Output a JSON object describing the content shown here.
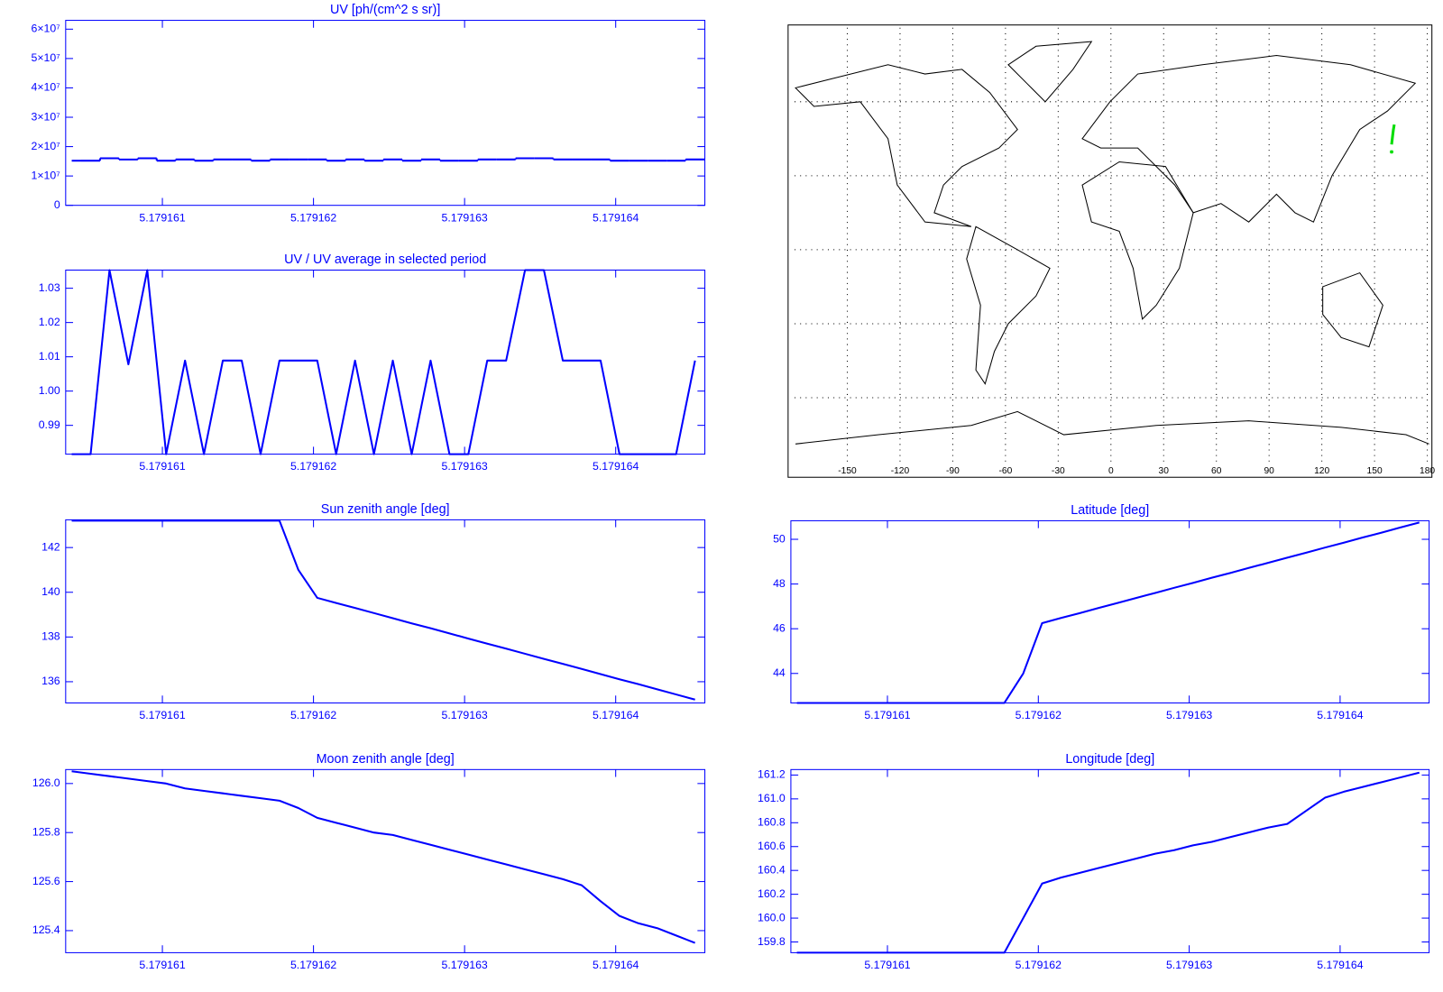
{
  "chart_data": [
    {
      "type": "line",
      "title": "UV [ph/(cm^2 s sr)]",
      "color": "#0000ff",
      "step": true,
      "x": [
        5.1791604,
        5.179160525,
        5.17916065,
        5.179160775,
        5.1791609,
        5.179161025,
        5.17916115,
        5.179161275,
        5.1791614,
        5.179161525,
        5.17916165,
        5.179161775,
        5.1791619,
        5.179162025,
        5.17916215,
        5.179162275,
        5.1791624,
        5.179162525,
        5.17916265,
        5.179162775,
        5.1791629,
        5.179163025,
        5.17916315,
        5.179163275,
        5.1791634,
        5.179163525,
        5.17916365,
        5.179163775,
        5.1791639,
        5.179164025,
        5.17916415,
        5.179164275,
        5.1791644,
        5.179164525
      ],
      "values": [
        15200000,
        15200000,
        16030000,
        15600000,
        16030000,
        15200000,
        15620000,
        15200000,
        15620000,
        15620000,
        15200000,
        15620000,
        15620000,
        15620000,
        15200000,
        15620000,
        15200000,
        15620000,
        15200000,
        15620000,
        15200000,
        15200000,
        15620000,
        15620000,
        16030000,
        16030000,
        15620000,
        15620000,
        15620000,
        15200000,
        15200000,
        15200000,
        15200000,
        15620000
      ],
      "xlim": [
        5.17916036,
        5.17916459
      ],
      "xticks": [
        5.179161,
        5.179162,
        5.179163,
        5.179164
      ],
      "ylim": [
        0,
        63000000
      ],
      "yticks": [
        0,
        {
          "value": 10000000,
          "label": "1×10⁷"
        },
        {
          "value": 20000000,
          "label": "2×10⁷"
        },
        {
          "value": 30000000,
          "label": "3×10⁷"
        },
        {
          "value": 40000000,
          "label": "4×10⁷"
        },
        {
          "value": 50000000,
          "label": "5×10⁷"
        },
        {
          "value": 60000000,
          "label": "6×10⁷"
        }
      ]
    },
    {
      "type": "line",
      "title": "UV / UV average in selected period",
      "color": "#0000ff",
      "x": [
        5.1791604,
        5.179160525,
        5.17916065,
        5.179160775,
        5.1791609,
        5.179161025,
        5.17916115,
        5.179161275,
        5.1791614,
        5.179161525,
        5.17916165,
        5.179161775,
        5.1791619,
        5.179162025,
        5.17916215,
        5.179162275,
        5.1791624,
        5.179162525,
        5.17916265,
        5.179162775,
        5.1791629,
        5.179163025,
        5.17916315,
        5.179163275,
        5.1791634,
        5.179163525,
        5.17916365,
        5.179163775,
        5.1791639,
        5.179164025,
        5.17916415,
        5.179164275,
        5.1791644,
        5.179164525
      ],
      "values": [
        0.9816,
        0.9816,
        1.0353,
        1.0078,
        1.0353,
        0.9816,
        1.0089,
        0.9816,
        1.0089,
        1.0089,
        0.9816,
        1.0089,
        1.0089,
        1.0089,
        0.9816,
        1.0089,
        0.9816,
        1.0089,
        0.9816,
        1.0089,
        0.9816,
        0.9816,
        1.0089,
        1.0089,
        1.0353,
        1.0353,
        1.0089,
        1.0089,
        1.0089,
        0.9816,
        0.9816,
        0.9816,
        0.9816,
        1.0089
      ],
      "xlim": [
        5.17916036,
        5.17916459
      ],
      "xticks": [
        5.179161,
        5.179162,
        5.179163,
        5.179164
      ],
      "ylim": [
        0.9816,
        1.0353
      ],
      "yticks": [
        0.99,
        {
          "value": 1,
          "label": "1.00"
        },
        1.01,
        1.02,
        1.03
      ]
    },
    {
      "type": "line",
      "title": "Sun zenith angle [deg]",
      "color": "#0000ff",
      "x": [
        5.1791604,
        5.179160525,
        5.17916065,
        5.179160775,
        5.1791609,
        5.179161025,
        5.17916115,
        5.179161275,
        5.1791614,
        5.179161525,
        5.17916165,
        5.179161775,
        5.1791619,
        5.179162025,
        5.17916215,
        5.179162275,
        5.1791624,
        5.179162525,
        5.17916265,
        5.179162775,
        5.1791629,
        5.179163025,
        5.17916315,
        5.179163275,
        5.1791634,
        5.179163525,
        5.17916365,
        5.179163775,
        5.1791639,
        5.179164025,
        5.17916415,
        5.179164275,
        5.1791644,
        5.179164525
      ],
      "values": [
        143.2,
        143.2,
        143.2,
        143.2,
        143.2,
        143.2,
        143.2,
        143.2,
        143.2,
        143.2,
        143.2,
        143.2,
        141.0,
        139.75,
        139.52,
        139.3,
        139.07,
        138.84,
        138.61,
        138.39,
        138.16,
        137.93,
        137.7,
        137.48,
        137.25,
        137.02,
        136.8,
        136.57,
        136.34,
        136.11,
        135.89,
        135.66,
        135.43,
        135.2
      ],
      "xlim": [
        5.17916036,
        5.17916459
      ],
      "xticks": [
        5.179161,
        5.179162,
        5.179163,
        5.179164
      ],
      "ylim": [
        135.05,
        143.24
      ],
      "yticks": [
        136,
        138,
        140,
        142
      ]
    },
    {
      "type": "line",
      "title": "Moon zenith angle [deg]",
      "color": "#0000ff",
      "x": [
        5.1791604,
        5.179160525,
        5.17916065,
        5.179160775,
        5.1791609,
        5.179161025,
        5.17916115,
        5.179161275,
        5.1791614,
        5.179161525,
        5.17916165,
        5.179161775,
        5.1791619,
        5.179162025,
        5.17916215,
        5.179162275,
        5.1791624,
        5.179162525,
        5.17916265,
        5.179162775,
        5.1791629,
        5.179163025,
        5.17916315,
        5.179163275,
        5.1791634,
        5.179163525,
        5.17916365,
        5.179163775,
        5.1791639,
        5.179164025,
        5.17916415,
        5.179164275,
        5.1791644,
        5.179164525
      ],
      "values": [
        126.05,
        126.04,
        126.03,
        126.02,
        126.01,
        126.0,
        125.98,
        125.97,
        125.96,
        125.95,
        125.94,
        125.93,
        125.9,
        125.86,
        125.84,
        125.82,
        125.8,
        125.79,
        125.77,
        125.75,
        125.73,
        125.71,
        125.69,
        125.67,
        125.65,
        125.63,
        125.61,
        125.585,
        125.52,
        125.46,
        125.43,
        125.41,
        125.38,
        125.35
      ],
      "xlim": [
        5.17916036,
        5.17916459
      ],
      "xticks": [
        5.179161,
        5.179162,
        5.179163,
        5.179164
      ],
      "ylim": [
        125.31,
        126.057
      ],
      "yticks": [
        125.4,
        125.6,
        125.8,
        {
          "value": 126,
          "label": "126.0"
        }
      ]
    },
    {
      "type": "map",
      "color": "#00dd00",
      "grid": true,
      "x": [
        159.71,
        160.29,
        160.68,
        161.22
      ],
      "values": [
        42.68,
        46.25,
        48.5,
        50.75
      ],
      "xlim": [
        -180,
        180
      ],
      "xticks": [
        -150,
        -120,
        -90,
        -60,
        -30,
        0,
        30,
        60,
        90,
        120,
        150,
        180
      ],
      "ylim": [
        -90,
        90
      ],
      "yticks": [
        -60,
        -30,
        0,
        30,
        60
      ]
    },
    {
      "type": "line",
      "title": "Latitude [deg]",
      "color": "#0000ff",
      "x": [
        5.1791604,
        5.179160525,
        5.17916065,
        5.179160775,
        5.1791609,
        5.179161025,
        5.17916115,
        5.179161275,
        5.1791614,
        5.179161525,
        5.17916165,
        5.179161775,
        5.1791619,
        5.179162025,
        5.17916215,
        5.179162275,
        5.1791624,
        5.179162525,
        5.17916265,
        5.179162775,
        5.1791629,
        5.179163025,
        5.17916315,
        5.179163275,
        5.1791634,
        5.179163525,
        5.17916365,
        5.179163775,
        5.1791639,
        5.179164025,
        5.17916415,
        5.179164275,
        5.1791644,
        5.179164525
      ],
      "values": [
        42.68,
        42.68,
        42.68,
        42.68,
        42.68,
        42.68,
        42.68,
        42.68,
        42.68,
        42.68,
        42.68,
        42.68,
        44.0,
        46.25,
        46.48,
        46.7,
        46.93,
        47.15,
        47.38,
        47.6,
        47.83,
        48.05,
        48.28,
        48.5,
        48.73,
        48.95,
        49.18,
        49.4,
        49.63,
        49.85,
        50.08,
        50.3,
        50.53,
        50.75
      ],
      "xlim": [
        5.17916036,
        5.17916459
      ],
      "xticks": [
        5.179161,
        5.179162,
        5.179163,
        5.179164
      ],
      "ylim": [
        42.68,
        50.83
      ],
      "yticks": [
        44,
        46,
        48,
        50
      ]
    },
    {
      "type": "line",
      "title": "Longitude [deg]",
      "color": "#0000ff",
      "x": [
        5.1791604,
        5.179160525,
        5.17916065,
        5.179160775,
        5.1791609,
        5.179161025,
        5.17916115,
        5.179161275,
        5.1791614,
        5.179161525,
        5.17916165,
        5.179161775,
        5.1791619,
        5.179162025,
        5.17916215,
        5.179162275,
        5.1791624,
        5.179162525,
        5.17916265,
        5.179162775,
        5.1791629,
        5.179163025,
        5.17916315,
        5.179163275,
        5.1791634,
        5.179163525,
        5.17916365,
        5.179163775,
        5.1791639,
        5.179164025,
        5.17916415,
        5.179164275,
        5.1791644,
        5.179164525
      ],
      "values": [
        159.71,
        159.71,
        159.71,
        159.71,
        159.71,
        159.71,
        159.71,
        159.71,
        159.71,
        159.71,
        159.71,
        159.71,
        160.0,
        160.29,
        160.34,
        160.38,
        160.42,
        160.46,
        160.5,
        160.54,
        160.57,
        160.61,
        160.64,
        160.68,
        160.72,
        160.76,
        160.79,
        160.9,
        161.01,
        161.06,
        161.1,
        161.14,
        161.18,
        161.22
      ],
      "xlim": [
        5.17916036,
        5.17916459
      ],
      "xticks": [
        5.179161,
        5.179162,
        5.179163,
        5.179164
      ],
      "ylim": [
        159.71,
        161.246
      ],
      "yticks": [
        159.8,
        {
          "value": 160,
          "label": "160.0"
        },
        160.2,
        160.4,
        160.6,
        160.8,
        {
          "value": 161,
          "label": "161.0"
        },
        161.2
      ]
    }
  ]
}
